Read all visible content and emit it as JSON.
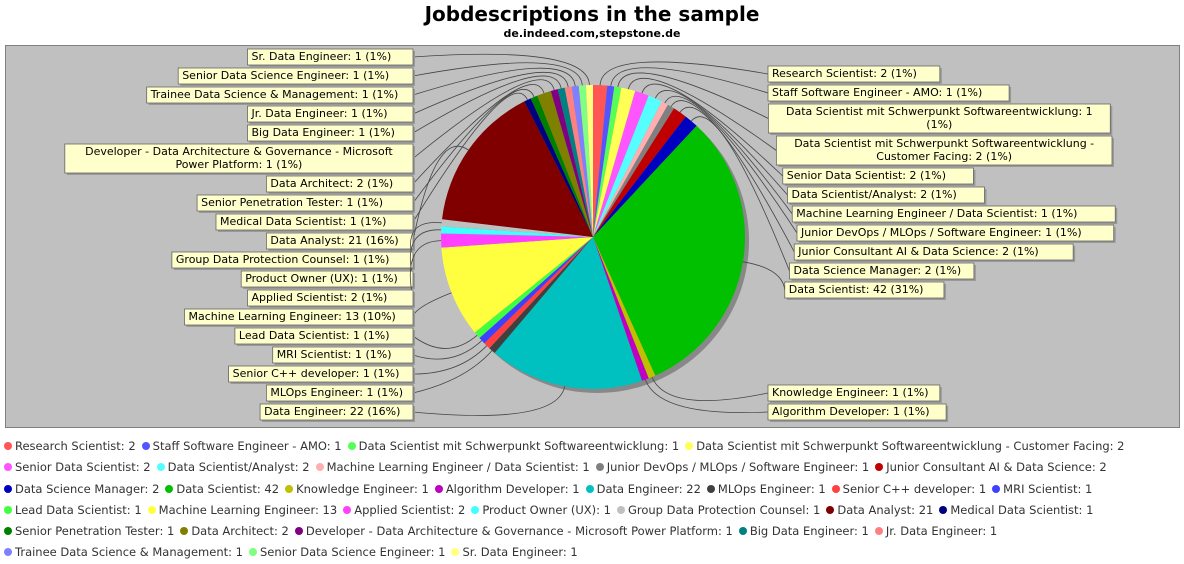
{
  "chart_data": {
    "type": "pie",
    "title": "Jobdescriptions in the sample",
    "subtitle": "de.indeed.com,stepstone.de",
    "slices": [
      {
        "name": "Research Scientist",
        "value": 2,
        "label": "Research Scientist: 2 (1%)",
        "legend": "Research Scientist: 2",
        "color": "#ff5555"
      },
      {
        "name": "Staff Software Engineer - AMO",
        "value": 1,
        "label": "Staff Software Engineer - AMO: 1 (1%)",
        "legend": "Staff Software Engineer - AMO: 1",
        "color": "#5555ff"
      },
      {
        "name": "Data Scientist mit Schwerpunkt Softwareentwicklung",
        "value": 1,
        "label": "Data Scientist mit Schwerpunkt Softwareentwicklung: 1 (1%)",
        "legend": "Data Scientist mit Schwerpunkt Softwareentwicklung: 1",
        "color": "#55ff55"
      },
      {
        "name": "Data Scientist mit Schwerpunkt Softwareentwicklung - Customer Facing",
        "value": 2,
        "label": "Data Scientist mit Schwerpunkt Softwareentwicklung - Customer Facing: 2 (1%)",
        "legend": "Data Scientist mit Schwerpunkt Softwareentwicklung - Customer Facing: 2",
        "color": "#ffff55"
      },
      {
        "name": "Senior Data Scientist",
        "value": 2,
        "label": "Senior Data Scientist: 2 (1%)",
        "legend": "Senior Data Scientist: 2",
        "color": "#ff55ff"
      },
      {
        "name": "Data Scientist/Analyst",
        "value": 2,
        "label": "Data Scientist/Analyst: 2 (1%)",
        "legend": "Data Scientist/Analyst: 2",
        "color": "#55ffff"
      },
      {
        "name": "Machine Learning Engineer / Data Scientist",
        "value": 1,
        "label": "Machine Learning Engineer / Data Scientist: 1 (1%)",
        "legend": "Machine Learning Engineer / Data Scientist: 1",
        "color": "#ffafaf"
      },
      {
        "name": "Junior DevOps / MLOps / Software Engineer",
        "value": 1,
        "label": "Junior DevOps / MLOps / Software Engineer: 1 (1%)",
        "legend": "Junior DevOps / MLOps / Software Engineer: 1",
        "color": "#808080"
      },
      {
        "name": "Junior Consultant AI & Data Science",
        "value": 2,
        "label": "Junior Consultant AI & Data Science: 2 (1%)",
        "legend": "Junior Consultant AI & Data Science: 2",
        "color": "#c00000"
      },
      {
        "name": "Data Science Manager",
        "value": 2,
        "label": "Data Science Manager: 2 (1%)",
        "legend": "Data Science Manager: 2",
        "color": "#0000c0"
      },
      {
        "name": "Data Scientist",
        "value": 42,
        "label": "Data Scientist: 42 (31%)",
        "legend": "Data Scientist: 42",
        "color": "#00c000"
      },
      {
        "name": "Knowledge Engineer",
        "value": 1,
        "label": "Knowledge Engineer: 1 (1%)",
        "legend": "Knowledge Engineer: 1",
        "color": "#c0c000"
      },
      {
        "name": "Algorithm Developer",
        "value": 1,
        "label": "Algorithm Developer: 1 (1%)",
        "legend": "Algorithm Developer: 1",
        "color": "#c000c0"
      },
      {
        "name": "Data Engineer",
        "value": 22,
        "label": "Data Engineer: 22 (16%)",
        "legend": "Data Engineer: 22",
        "color": "#00c0c0"
      },
      {
        "name": "MLOps Engineer",
        "value": 1,
        "label": "MLOps Engineer: 1 (1%)",
        "legend": "MLOps Engineer: 1",
        "color": "#404040"
      },
      {
        "name": "Senior C++ developer",
        "value": 1,
        "label": "Senior C++ developer: 1 (1%)",
        "legend": "Senior C++ developer: 1",
        "color": "#ff4040"
      },
      {
        "name": "MRI Scientist",
        "value": 1,
        "label": "MRI Scientist: 1 (1%)",
        "legend": "MRI Scientist: 1",
        "color": "#4040ff"
      },
      {
        "name": "Lead Data Scientist",
        "value": 1,
        "label": "Lead Data Scientist: 1 (1%)",
        "legend": "Lead Data Scientist: 1",
        "color": "#40ff40"
      },
      {
        "name": "Machine Learning Engineer",
        "value": 13,
        "label": "Machine Learning Engineer: 13 (10%)",
        "legend": "Machine Learning Engineer: 13",
        "color": "#ffff40"
      },
      {
        "name": "Applied Scientist",
        "value": 2,
        "label": "Applied Scientist: 2 (1%)",
        "legend": "Applied Scientist: 2",
        "color": "#ff40ff"
      },
      {
        "name": "Product Owner (UX)",
        "value": 1,
        "label": "Product Owner (UX): 1 (1%)",
        "legend": "Product Owner (UX): 1",
        "color": "#40ffff"
      },
      {
        "name": "Group Data Protection Counsel",
        "value": 1,
        "label": "Group Data Protection Counsel: 1 (1%)",
        "legend": "Group Data Protection Counsel: 1",
        "color": "#c0c0c0"
      },
      {
        "name": "Data Analyst",
        "value": 21,
        "label": "Data Analyst: 21 (16%)",
        "legend": "Data Analyst: 21",
        "color": "#800000"
      },
      {
        "name": "Medical Data Scientist",
        "value": 1,
        "label": "Medical Data Scientist: 1 (1%)",
        "legend": "Medical Data Scientist: 1",
        "color": "#000080"
      },
      {
        "name": "Senior Penetration Tester",
        "value": 1,
        "label": "Senior Penetration Tester: 1 (1%)",
        "legend": "Senior Penetration Tester: 1",
        "color": "#008000"
      },
      {
        "name": "Data Architect",
        "value": 2,
        "label": "Data Architect: 2 (1%)",
        "legend": "Data Architect: 2",
        "color": "#808000"
      },
      {
        "name": "Developer - Data Architecture & Governance - Microsoft Power Platform",
        "value": 1,
        "label": "Developer - Data Architecture & Governance - Microsoft Power Platform: 1 (1%)",
        "legend": "Developer - Data Architecture & Governance - Microsoft Power Platform: 1",
        "color": "#800080"
      },
      {
        "name": "Big Data Engineer",
        "value": 1,
        "label": "Big Data Engineer: 1 (1%)",
        "legend": "Big Data Engineer: 1",
        "color": "#008080"
      },
      {
        "name": "Jr. Data Engineer",
        "value": 1,
        "label": "Jr. Data Engineer: 1 (1%)",
        "legend": "Jr. Data Engineer: 1",
        "color": "#ff8080"
      },
      {
        "name": "Trainee Data Science & Management",
        "value": 1,
        "label": "Trainee Data Science & Management: 1 (1%)",
        "legend": "Trainee Data Science & Management: 1",
        "color": "#8080ff"
      },
      {
        "name": "Senior Data Science Engineer",
        "value": 1,
        "label": "Senior Data Science Engineer: 1 (1%)",
        "legend": "Senior Data Science Engineer: 1",
        "color": "#80ff80"
      },
      {
        "name": "Sr. Data Engineer",
        "value": 1,
        "label": "Sr. Data Engineer: 1 (1%)",
        "legend": "Sr. Data Engineer: 1",
        "color": "#ffff80"
      }
    ],
    "background": "#c0c0c0",
    "legend_position": "bottom"
  }
}
